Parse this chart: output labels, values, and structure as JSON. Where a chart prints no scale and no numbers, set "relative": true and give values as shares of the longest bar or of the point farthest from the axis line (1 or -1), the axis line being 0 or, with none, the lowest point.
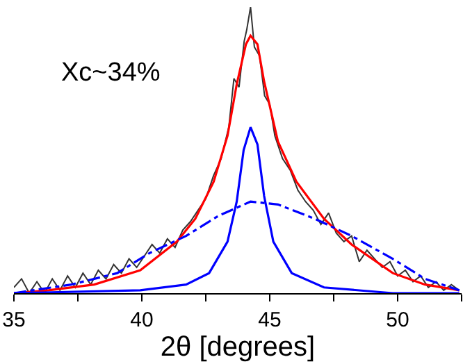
{
  "chart_data": {
    "type": "line",
    "relative": true,
    "xlabel": "2θ [degrees]",
    "annotations": [
      "Xc~34%"
    ],
    "xlim": [
      35,
      52.5
    ],
    "xticks": [
      35,
      {
        "value": 37.5,
        "label": null
      },
      40,
      {
        "value": 42.5,
        "label": null
      },
      45,
      {
        "value": 47.5,
        "label": null
      },
      50,
      {
        "value": 52.5,
        "label": null
      }
    ],
    "marker": "none",
    "series": [
      {
        "color": "#333333",
        "x": [
          35.0,
          35.3,
          35.6,
          35.9,
          36.2,
          36.5,
          36.8,
          37.1,
          37.4,
          37.7,
          38.0,
          38.3,
          38.6,
          38.9,
          39.2,
          39.5,
          39.8,
          40.1,
          40.4,
          40.7,
          41.0,
          41.3,
          41.6,
          41.9,
          42.2,
          42.5,
          42.8,
          43.1,
          43.4,
          43.6,
          43.8,
          44.0,
          44.1,
          44.25,
          44.4,
          44.6,
          44.8,
          45.0,
          45.2,
          45.5,
          45.8,
          46.1,
          46.4,
          46.7,
          47.0,
          47.3,
          47.6,
          47.9,
          48.2,
          48.5,
          48.8,
          49.1,
          49.4,
          49.7,
          50.0,
          50.3,
          50.6,
          50.9,
          51.2,
          51.5,
          51.8,
          52.1,
          52.4
        ],
        "values": [
          0.02,
          0.05,
          0.0,
          0.04,
          0.0,
          0.05,
          0.01,
          0.06,
          0.02,
          0.07,
          0.03,
          0.08,
          0.05,
          0.1,
          0.07,
          0.12,
          0.09,
          0.13,
          0.17,
          0.14,
          0.19,
          0.16,
          0.22,
          0.25,
          0.29,
          0.33,
          0.41,
          0.47,
          0.58,
          0.75,
          0.72,
          0.88,
          0.92,
          1.0,
          0.86,
          0.83,
          0.69,
          0.66,
          0.55,
          0.47,
          0.43,
          0.36,
          0.32,
          0.29,
          0.24,
          0.28,
          0.21,
          0.18,
          0.2,
          0.11,
          0.15,
          0.12,
          0.09,
          0.11,
          0.06,
          0.08,
          0.04,
          0.06,
          0.02,
          0.04,
          0.01,
          0.03,
          0.01
        ],
        "line_style": "solid"
      },
      {
        "color": "#ff0000",
        "x": [
          35.0,
          36.35,
          38.14,
          39.94,
          41.37,
          42.09,
          42.81,
          43.35,
          43.71,
          44.07,
          44.25,
          44.52,
          44.78,
          45.32,
          46.04,
          47.12,
          48.2,
          49.81,
          51.07,
          52.41
        ],
        "values": [
          0.0,
          0.01,
          0.03,
          0.08,
          0.18,
          0.26,
          0.39,
          0.55,
          0.73,
          0.87,
          0.9,
          0.87,
          0.74,
          0.53,
          0.39,
          0.26,
          0.17,
          0.07,
          0.03,
          0.01
        ],
        "line_style": "solid"
      },
      {
        "color": "#0000ff",
        "x": [
          35.0,
          39.94,
          41.73,
          42.63,
          43.35,
          43.71,
          43.98,
          44.25,
          44.52,
          44.78,
          45.14,
          45.86,
          47.12,
          49.81,
          52.41
        ],
        "values": [
          0.0,
          0.01,
          0.03,
          0.07,
          0.18,
          0.32,
          0.5,
          0.58,
          0.52,
          0.34,
          0.18,
          0.07,
          0.02,
          0.0,
          0.0
        ],
        "line_style": "solid"
      },
      {
        "color": "#0000ff",
        "x": [
          35.0,
          37.24,
          39.04,
          40.3,
          41.73,
          42.99,
          44.25,
          45.32,
          46.76,
          48.2,
          49.81,
          51.07,
          52.41
        ],
        "values": [
          0.0,
          0.03,
          0.07,
          0.14,
          0.2,
          0.27,
          0.32,
          0.31,
          0.26,
          0.2,
          0.12,
          0.05,
          0.01
        ],
        "line_style": "dashdot"
      }
    ]
  }
}
